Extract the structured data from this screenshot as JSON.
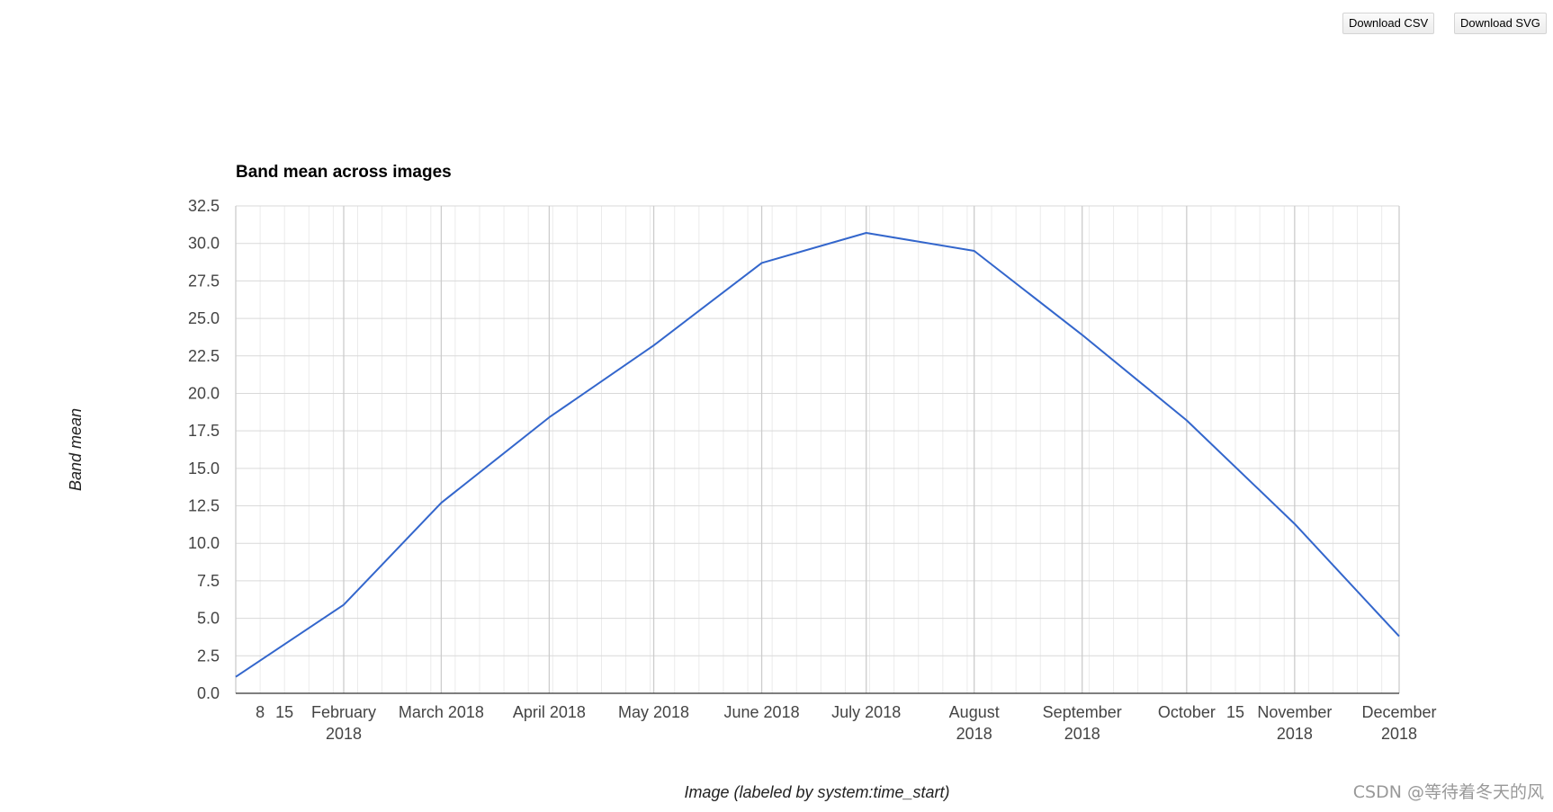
{
  "toolbar": {
    "download_csv_label": "Download CSV",
    "download_svg_label": "Download SVG"
  },
  "watermark": "CSDN @等待着冬天的风",
  "chart_data": {
    "type": "line",
    "title": "Band mean across images",
    "xlabel": "Image (labeled by system:time_start)",
    "ylabel": "Band mean",
    "ylim": [
      0,
      32.5
    ],
    "y_ticks": [
      "0.0",
      "2.5",
      "5.0",
      "7.5",
      "10.0",
      "12.5",
      "15.0",
      "17.5",
      "20.0",
      "22.5",
      "25.0",
      "27.5",
      "30.0",
      "32.5"
    ],
    "xlim": [
      "2018-01-01",
      "2018-12-01"
    ],
    "x_tick_labels": [
      {
        "date": "2018-01-08",
        "lines": [
          "8"
        ]
      },
      {
        "date": "2018-01-15",
        "lines": [
          "15"
        ]
      },
      {
        "date": "2018-02-01",
        "lines": [
          "February",
          "2018"
        ]
      },
      {
        "date": "2018-03-01",
        "lines": [
          "March 2018"
        ]
      },
      {
        "date": "2018-04-01",
        "lines": [
          "April 2018"
        ]
      },
      {
        "date": "2018-05-01",
        "lines": [
          "May 2018"
        ]
      },
      {
        "date": "2018-06-01",
        "lines": [
          "June 2018"
        ]
      },
      {
        "date": "2018-07-01",
        "lines": [
          "July 2018"
        ]
      },
      {
        "date": "2018-08-01",
        "lines": [
          "August",
          "2018"
        ]
      },
      {
        "date": "2018-09-01",
        "lines": [
          "September",
          "2018"
        ]
      },
      {
        "date": "2018-10-01",
        "lines": [
          "October"
        ]
      },
      {
        "date": "2018-10-15",
        "lines": [
          "15"
        ]
      },
      {
        "date": "2018-11-01",
        "lines": [
          "November",
          "2018"
        ]
      },
      {
        "date": "2018-12-01",
        "lines": [
          "December",
          "2018"
        ]
      }
    ],
    "series": [
      {
        "color": "#3366cc",
        "x": [
          "2018-01-01",
          "2018-02-01",
          "2018-03-01",
          "2018-04-01",
          "2018-05-01",
          "2018-06-01",
          "2018-07-01",
          "2018-08-01",
          "2018-09-01",
          "2018-10-01",
          "2018-11-01",
          "2018-12-01"
        ],
        "y": [
          1.1,
          5.9,
          12.7,
          18.4,
          23.2,
          28.7,
          30.7,
          29.5,
          23.9,
          18.2,
          11.3,
          3.8
        ]
      }
    ],
    "grid": true,
    "minor_grid": "weekly",
    "legend": "none"
  }
}
